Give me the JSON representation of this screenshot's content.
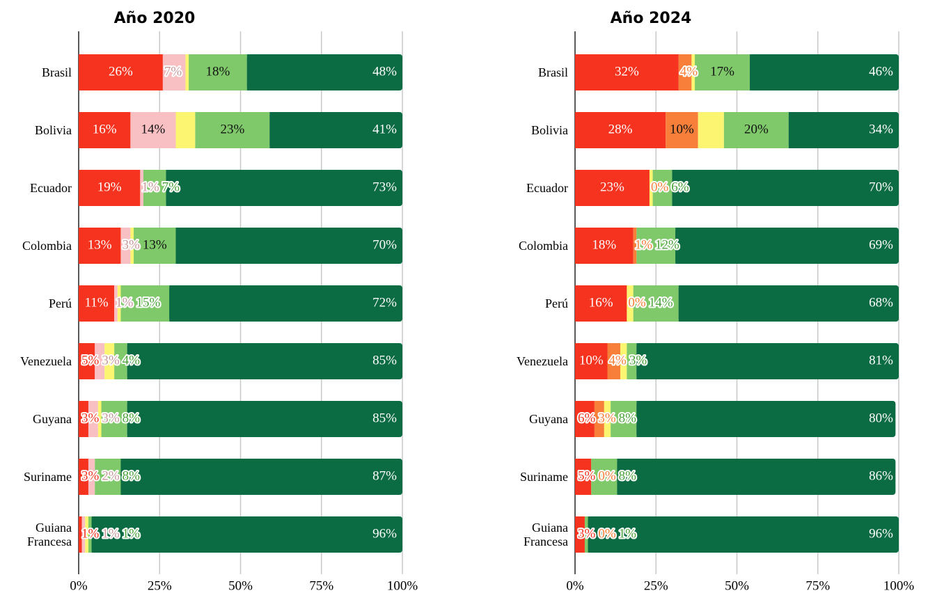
{
  "chart_data": [
    {
      "type": "bar",
      "title": "Año 2020",
      "categories": [
        "Brasil",
        "Bolivia",
        "Ecuador",
        "Colombia",
        "Perú",
        "Venezuela",
        "Guyana",
        "Suriname",
        "Guiana Francesa"
      ],
      "series": [
        {
          "color": "#f5331f",
          "values": [
            26,
            16,
            19,
            13,
            11,
            5,
            3,
            3,
            1
          ],
          "value_labels": [
            "26%",
            "16%",
            "19%",
            "13%",
            "11%",
            "5%",
            "3%",
            "3%",
            "1%"
          ]
        },
        {
          "color": "#f9c0c4",
          "values": [
            7,
            14,
            1,
            3,
            1,
            3,
            3,
            2,
            1
          ],
          "value_labels": [
            "7%",
            "14%",
            "1%",
            "3%",
            "1%",
            "3%",
            "3%",
            "2%",
            "1%"
          ]
        },
        {
          "color": "#fbf571",
          "values": [
            1,
            6,
            0,
            1,
            1,
            3,
            1,
            0,
            1
          ]
        },
        {
          "color": "#7fc96b",
          "values": [
            18,
            23,
            7,
            13,
            15,
            4,
            8,
            8,
            1
          ],
          "value_labels": [
            "18%",
            "23%",
            "7%",
            "13%",
            "15%",
            "4%",
            "8%",
            "8%",
            "1%"
          ]
        },
        {
          "color": "#0b6b43",
          "values": [
            48,
            41,
            73,
            70,
            72,
            85,
            85,
            87,
            96
          ],
          "value_labels": [
            "48%",
            "41%",
            "73%",
            "70%",
            "72%",
            "85%",
            "85%",
            "87%",
            "96%"
          ]
        }
      ],
      "xlim": [
        0,
        100
      ],
      "xticks": [
        {
          "value": 0,
          "label": "0%"
        },
        {
          "value": 25,
          "label": "25%"
        },
        {
          "value": 50,
          "label": "50%"
        },
        {
          "value": 75,
          "label": "75%"
        },
        {
          "value": 100,
          "label": "100%"
        }
      ],
      "grid": true
    },
    {
      "type": "bar",
      "title": "Año 2024",
      "categories": [
        "Brasil",
        "Bolivia",
        "Ecuador",
        "Colombia",
        "Perú",
        "Venezuela",
        "Guyana",
        "Suriname",
        "Guiana Francesa"
      ],
      "series": [
        {
          "color": "#f5331f",
          "values": [
            32,
            28,
            23,
            18,
            16,
            10,
            6,
            5,
            3
          ],
          "value_labels": [
            "32%",
            "28%",
            "23%",
            "18%",
            "16%",
            "10%",
            "6%",
            "5%",
            "3%"
          ]
        },
        {
          "color": "#f77f3a",
          "values": [
            4,
            10,
            0,
            1,
            0,
            4,
            3,
            0,
            0
          ],
          "value_labels": [
            "4%",
            "10%",
            "0%",
            "1%",
            "0%",
            "4%",
            "3%",
            "0%",
            "0%"
          ]
        },
        {
          "color": "#fbf571",
          "values": [
            1,
            8,
            1,
            0,
            2,
            2,
            2,
            0,
            0
          ]
        },
        {
          "color": "#7fc96b",
          "values": [
            17,
            20,
            6,
            12,
            14,
            3,
            8,
            8,
            1
          ],
          "value_labels": [
            "17%",
            "20%",
            "6%",
            "12%",
            "14%",
            "3%",
            "8%",
            "8%",
            "1%"
          ]
        },
        {
          "color": "#0b6b43",
          "values": [
            46,
            34,
            70,
            69,
            68,
            81,
            80,
            86,
            96
          ],
          "value_labels": [
            "46%",
            "34%",
            "70%",
            "69%",
            "68%",
            "81%",
            "80%",
            "86%",
            "96%"
          ]
        }
      ],
      "xlim": [
        0,
        100
      ],
      "xticks": [
        {
          "value": 0,
          "label": "0%"
        },
        {
          "value": 25,
          "label": "25%"
        },
        {
          "value": 50,
          "label": "50%"
        },
        {
          "value": 75,
          "label": "75%"
        },
        {
          "value": 100,
          "label": "100%"
        }
      ],
      "grid": true
    }
  ]
}
